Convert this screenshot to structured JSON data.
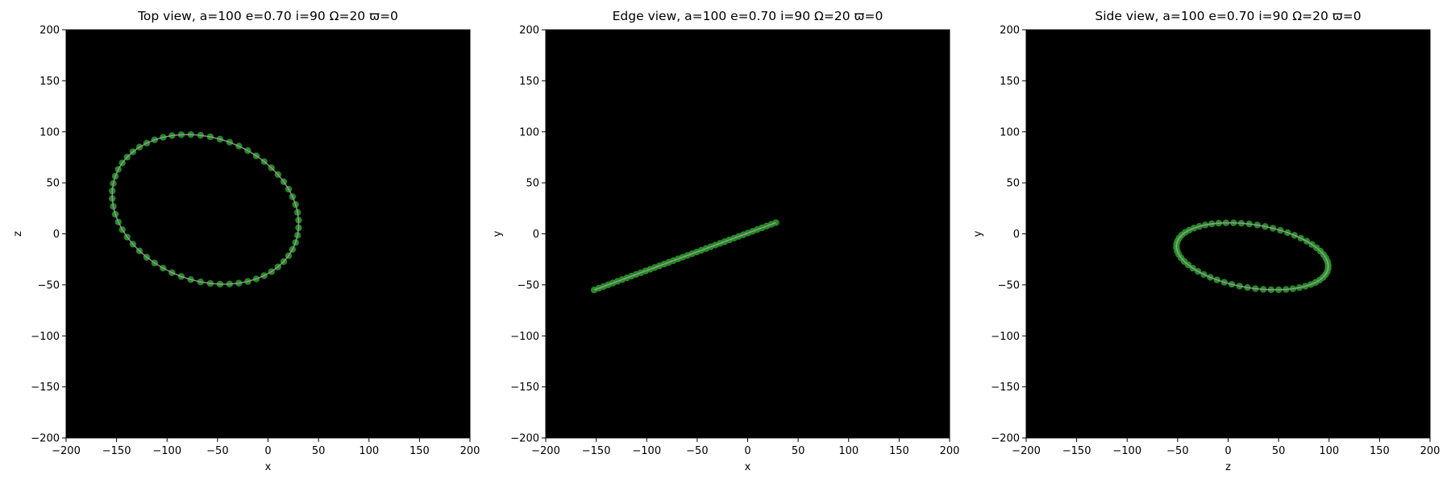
{
  "chart_data": [
    {
      "type": "scatter",
      "view": "top",
      "title": "Top view, a=100 e=0.70 i=90 Ω=20 ϖ=0",
      "xlabel": "x",
      "ylabel": "z",
      "xlim": [
        -200,
        200
      ],
      "ylim": [
        -200,
        200
      ],
      "xticks": [
        "−200",
        "−150",
        "−100",
        "−50",
        "0",
        "50",
        "100",
        "150",
        "200"
      ],
      "yticks": [
        "−200",
        "−150",
        "−100",
        "−50",
        "0",
        "50",
        "100",
        "150",
        "200"
      ],
      "background": "#000000",
      "orbit": {
        "shape": "ellipse",
        "center": [
          -62,
          24
        ],
        "semi_axis_1": 95,
        "semi_axis_2": 70,
        "rotation_deg": -20,
        "num_points": 60,
        "point_color": "#2ca02c",
        "line_color": "#a0a0a0"
      }
    },
    {
      "type": "scatter",
      "view": "edge",
      "title": "Edge view, a=100 e=0.70 i=90 Ω=20 ϖ=0",
      "xlabel": "x",
      "ylabel": "y",
      "xlim": [
        -200,
        200
      ],
      "ylim": [
        -200,
        200
      ],
      "xticks": [
        "−200",
        "−150",
        "−100",
        "−50",
        "0",
        "50",
        "100",
        "150",
        "200"
      ],
      "yticks": [
        "−200",
        "−150",
        "−100",
        "−50",
        "0",
        "50",
        "100",
        "150",
        "200"
      ],
      "background": "#000000",
      "orbit": {
        "shape": "line",
        "start": [
          -152,
          -55
        ],
        "end": [
          28,
          11
        ],
        "num_points": 40,
        "point_color": "#2ca02c",
        "line_color": "#a0a0a0"
      }
    },
    {
      "type": "scatter",
      "view": "side",
      "title": "Side view, a=100 e=0.70 i=90 Ω=20 ϖ=0",
      "xlabel": "z",
      "ylabel": "y",
      "xlim": [
        -200,
        200
      ],
      "ylim": [
        -200,
        200
      ],
      "xticks": [
        "−200",
        "−150",
        "−100",
        "−50",
        "0",
        "50",
        "100",
        "150",
        "200"
      ],
      "yticks": [
        "−200",
        "−150",
        "−100",
        "−50",
        "0",
        "50",
        "100",
        "150",
        "200"
      ],
      "background": "#000000",
      "orbit": {
        "shape": "ellipse",
        "center": [
          24,
          -22
        ],
        "semi_axis_1": 76,
        "semi_axis_2": 31,
        "rotation_deg": -9,
        "num_points": 60,
        "point_color": "#2ca02c",
        "line_color": "#a0a0a0"
      }
    }
  ]
}
